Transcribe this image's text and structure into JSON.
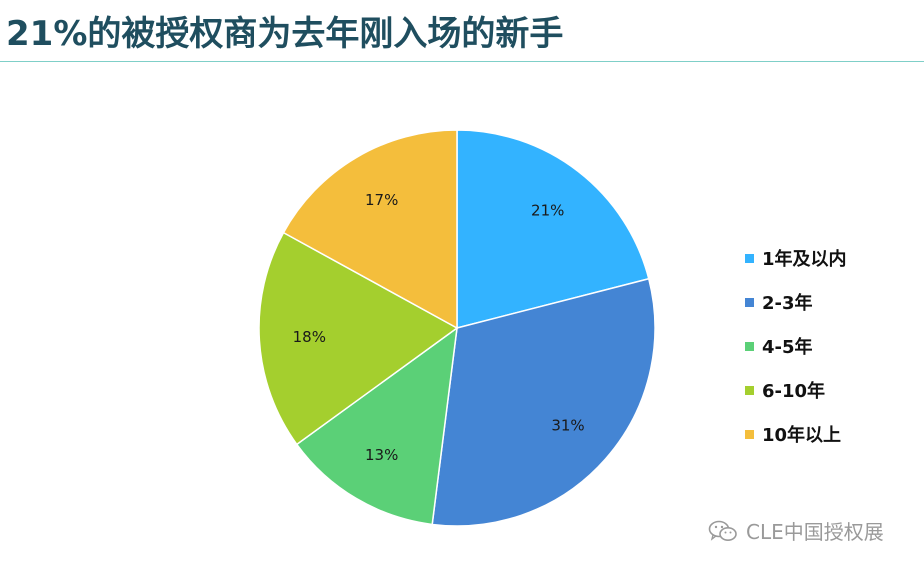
{
  "header": {
    "title": "21%的被授权商为去年刚入场的新手"
  },
  "watermark": {
    "text": "CLE中国授权展",
    "icon": "wechat-icon"
  },
  "colors": {
    "title": "#1f4e5f",
    "rule": "#7fcfc8"
  },
  "chart_data": {
    "type": "pie",
    "title": "",
    "categories": [
      "1年及以内",
      "2-3年",
      "4-5年",
      "6-10年",
      "10年以上"
    ],
    "values": [
      21,
      31,
      13,
      18,
      17
    ],
    "labels": [
      "21%",
      "31%",
      "13%",
      "18%",
      "17%"
    ],
    "colors": [
      "#33b3ff",
      "#4485d4",
      "#5bd077",
      "#a4cf2e",
      "#f4be3c"
    ],
    "legend": "right",
    "start_angle": "12 o'clock",
    "direction": "clockwise"
  }
}
